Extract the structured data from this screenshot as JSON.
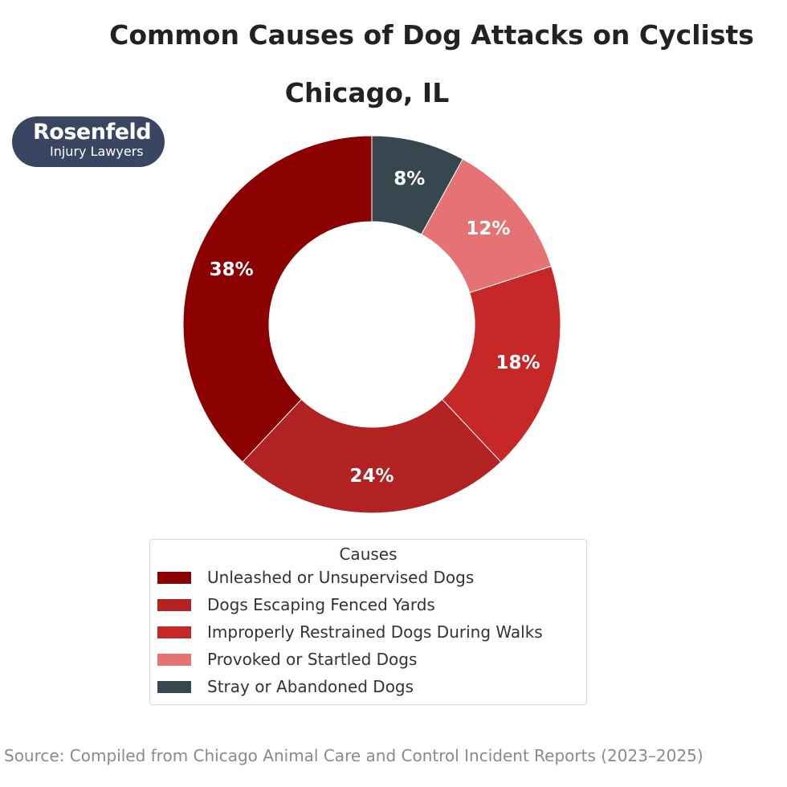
{
  "chart_data": {
    "type": "pie",
    "donut": true,
    "title": "Common Causes of Dog Attacks on Cyclists",
    "subtitle": "Chicago, IL",
    "categories": [
      "Unleashed or Unsupervised Dogs",
      "Dogs Escaping Fenced Yards",
      "Improperly Restrained Dogs During Walks",
      "Provoked or Startled Dogs",
      "Stray or Abandoned Dogs"
    ],
    "values": [
      38,
      24,
      18,
      12,
      8
    ],
    "data_labels": [
      "38%",
      "24%",
      "18%",
      "12%",
      "8%"
    ],
    "colors": [
      "#8b0000",
      "#b22222",
      "#c62828",
      "#e57373",
      "#37474f"
    ],
    "start_angle_deg": 90,
    "direction": "counterclockwise",
    "legend": {
      "title": "Causes",
      "placement": "bottom-center"
    },
    "source": "Source: Compiled from Chicago Animal Care and Control Incident Reports (2023–2025)"
  },
  "logo": {
    "line1": "Rosenfeld",
    "line2": "Injury Lawyers",
    "background": "#3a4661"
  }
}
